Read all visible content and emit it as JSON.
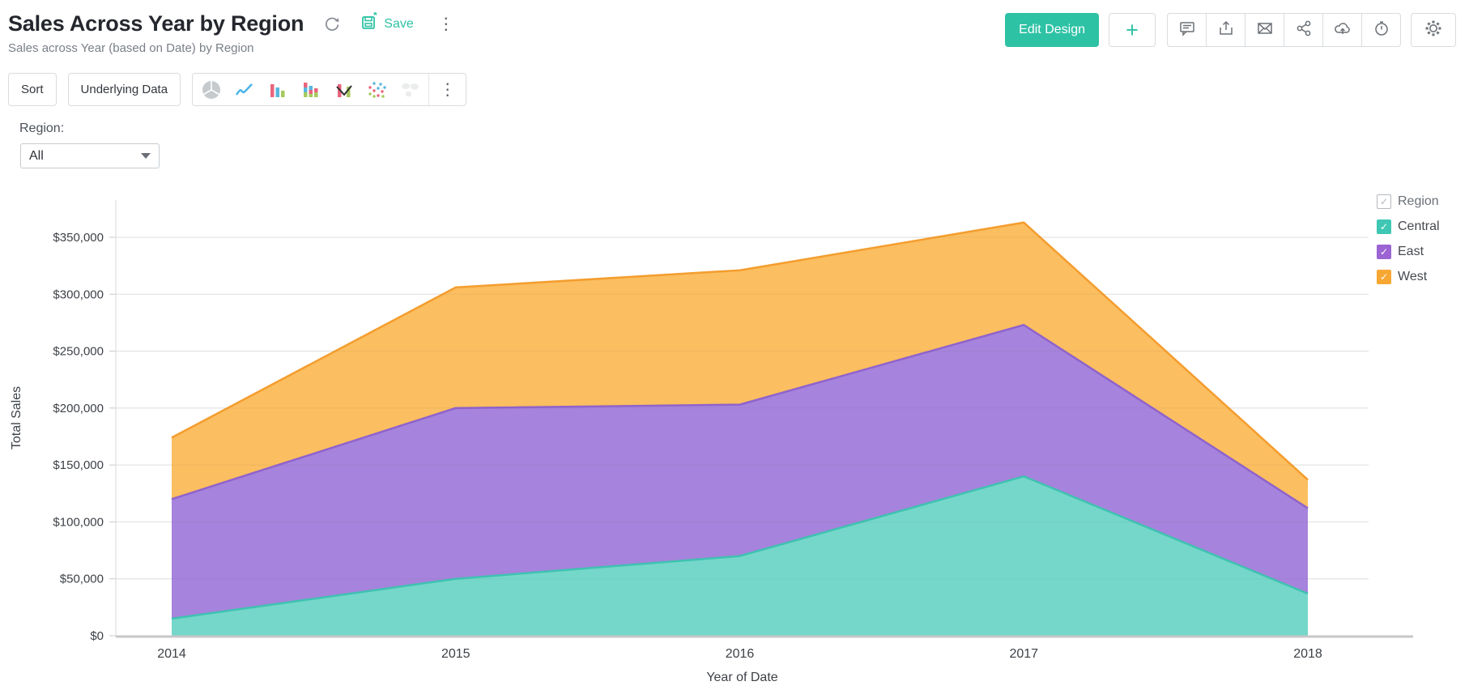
{
  "header": {
    "title": "Sales Across Year by Region",
    "subtitle": "Sales across Year (based on Date) by Region",
    "save_label": "Save",
    "edit_design_label": "Edit Design",
    "accent_color": "#2ec2a5"
  },
  "toolbar": {
    "sort_label": "Sort",
    "underlying_data_label": "Underlying Data",
    "chart_type_icons": [
      "pie-chart",
      "line-chart",
      "column-chart",
      "stacked-column-chart",
      "combo-chart",
      "scatter-chart",
      "map-chart"
    ]
  },
  "filter": {
    "label": "Region:",
    "value": "All"
  },
  "legend": {
    "title": "Region",
    "items": [
      {
        "label": "Central",
        "color": "#3fc7b4"
      },
      {
        "label": "East",
        "color": "#9b64d2"
      },
      {
        "label": "West",
        "color": "#f7a733"
      }
    ]
  },
  "chart_data": {
    "type": "area",
    "stacked": true,
    "title": "Sales Across Year by Region",
    "categories": [
      "2014",
      "2015",
      "2016",
      "2017",
      "2018"
    ],
    "series": [
      {
        "name": "Central",
        "values": [
          15000,
          50000,
          70000,
          140000,
          37000
        ],
        "fill": "#74d7c9",
        "stroke": "#3fc2b1"
      },
      {
        "name": "East",
        "values": [
          105000,
          150000,
          133000,
          133000,
          75000
        ],
        "fill": "#a683dc",
        "stroke": "#8f63cc"
      },
      {
        "name": "West",
        "values": [
          54000,
          106000,
          118000,
          90000,
          25000
        ],
        "fill": "#fbbe60",
        "stroke": "#f49d2e"
      }
    ],
    "totals": [
      174000,
      306000,
      321000,
      363000,
      137000
    ],
    "xlabel": "Year of Date",
    "ylabel": "Total Sales",
    "ylim": [
      0,
      375000
    ],
    "yticks": [
      0,
      50000,
      100000,
      150000,
      200000,
      250000,
      300000,
      350000
    ],
    "ytick_format": "$#,##0",
    "grid": true,
    "legend_position": "right"
  }
}
